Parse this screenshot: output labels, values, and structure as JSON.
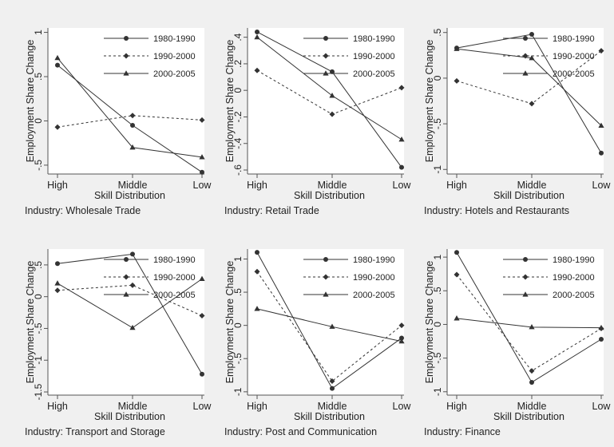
{
  "colors": {
    "background": "#f0f0f0",
    "plot_area": "#ffffff",
    "line": "#333333",
    "frame": "#555555"
  },
  "chart_data": [
    {
      "type": "line",
      "caption": "Industry: Wholesale Trade",
      "xlabel": "Skill Distribution",
      "ylabel": "Employment Share Change",
      "categories": [
        "High",
        "Middle",
        "Low"
      ],
      "ylim": [
        -0.6,
        1.05
      ],
      "yticks": [
        1,
        0.5,
        0,
        -0.5
      ],
      "ytick_labels": [
        "1",
        ".5",
        "0",
        "-.5"
      ],
      "legend_position": "top-right",
      "series": [
        {
          "name": "1980-1990",
          "values": [
            0.63,
            -0.05,
            -0.58
          ]
        },
        {
          "name": "1990-2000",
          "values": [
            -0.07,
            0.06,
            0.01
          ]
        },
        {
          "name": "2000-2005",
          "values": [
            0.71,
            -0.3,
            -0.41
          ]
        }
      ]
    },
    {
      "type": "line",
      "caption": "Industry: Retail Trade",
      "xlabel": "Skill Distribution",
      "ylabel": "Employment Share Change",
      "categories": [
        "High",
        "Middle",
        "Low"
      ],
      "ylim": [
        -0.63,
        0.47
      ],
      "yticks": [
        0.4,
        0.2,
        0,
        -0.2,
        -0.4,
        -0.6
      ],
      "ytick_labels": [
        ".4",
        ".2",
        "0",
        "-.2",
        "-.4",
        "-.6"
      ],
      "legend_position": "top-right",
      "series": [
        {
          "name": "1980-1990",
          "values": [
            0.44,
            0.14,
            -0.58
          ]
        },
        {
          "name": "1990-2000",
          "values": [
            0.15,
            -0.18,
            0.02
          ]
        },
        {
          "name": "2000-2005",
          "values": [
            0.4,
            -0.04,
            -0.37
          ]
        }
      ]
    },
    {
      "type": "line",
      "caption": "Industry: Hotels and Restaurants",
      "xlabel": "Skill Distribution",
      "ylabel": "Employment Share Change",
      "categories": [
        "High",
        "Middle",
        "Low"
      ],
      "ylim": [
        -1.05,
        0.55
      ],
      "yticks": [
        0.5,
        0,
        -0.5,
        -1
      ],
      "ytick_labels": [
        ".5",
        "0",
        "-.5",
        "-1"
      ],
      "legend_position": "top-right",
      "series": [
        {
          "name": "1980-1990",
          "values": [
            0.33,
            0.48,
            -0.82
          ]
        },
        {
          "name": "1990-2000",
          "values": [
            -0.03,
            -0.28,
            0.3
          ]
        },
        {
          "name": "2000-2005",
          "values": [
            0.32,
            0.22,
            -0.52
          ]
        }
      ]
    },
    {
      "type": "line",
      "caption": "Industry: Transport and Storage",
      "xlabel": "Skill Distribution",
      "ylabel": "Employment Share Change",
      "categories": [
        "High",
        "Middle",
        "Low"
      ],
      "ylim": [
        -1.55,
        0.75
      ],
      "yticks": [
        0.5,
        0,
        -0.5,
        -1,
        -1.5
      ],
      "ytick_labels": [
        ".5",
        "0",
        "-.5",
        "-1",
        "-1.5"
      ],
      "legend_position": "top-right",
      "series": [
        {
          "name": "1980-1990",
          "values": [
            0.52,
            0.67,
            -1.22
          ]
        },
        {
          "name": "1990-2000",
          "values": [
            0.1,
            0.18,
            -0.3
          ]
        },
        {
          "name": "2000-2005",
          "values": [
            0.21,
            -0.49,
            0.28
          ]
        }
      ]
    },
    {
      "type": "line",
      "caption": "Industry: Post and Communication",
      "xlabel": "Skill Distribution",
      "ylabel": "Employment Share Change",
      "categories": [
        "High",
        "Middle",
        "Low"
      ],
      "ylim": [
        -1.05,
        1.15
      ],
      "yticks": [
        1,
        0.5,
        0,
        -0.5,
        -1
      ],
      "ytick_labels": [
        "1",
        ".5",
        "0",
        "-.5",
        "-1"
      ],
      "legend_position": "top-right",
      "series": [
        {
          "name": "1980-1990",
          "values": [
            1.1,
            -0.95,
            -0.19
          ]
        },
        {
          "name": "1990-2000",
          "values": [
            0.81,
            -0.84,
            0.0
          ]
        },
        {
          "name": "2000-2005",
          "values": [
            0.25,
            -0.02,
            -0.24
          ]
        }
      ]
    },
    {
      "type": "line",
      "caption": "Industry: Finance",
      "xlabel": "Skill Distribution",
      "ylabel": "Employment Share Change",
      "categories": [
        "High",
        "Middle",
        "Low"
      ],
      "ylim": [
        -1.05,
        1.12
      ],
      "yticks": [
        1,
        0.5,
        0,
        -0.5,
        -1
      ],
      "ytick_labels": [
        "1",
        ".5",
        "0",
        "-.5",
        "-1"
      ],
      "legend_position": "top-right",
      "series": [
        {
          "name": "1980-1990",
          "values": [
            1.07,
            -0.86,
            -0.22
          ]
        },
        {
          "name": "1990-2000",
          "values": [
            0.74,
            -0.69,
            -0.06
          ]
        },
        {
          "name": "2000-2005",
          "values": [
            0.09,
            -0.04,
            -0.05
          ]
        }
      ]
    }
  ]
}
